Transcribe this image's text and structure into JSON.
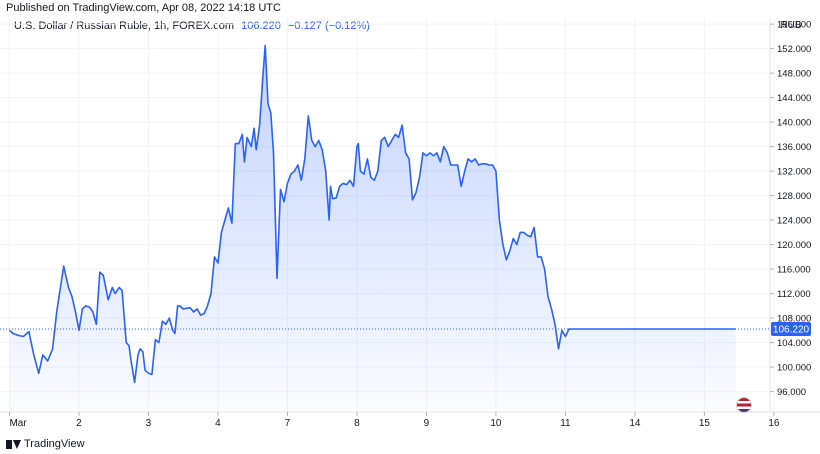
{
  "header": {
    "published": "Published on TradingView.com, Apr 08, 2022 14:18 UTC"
  },
  "legend": {
    "symbol": "U.S. Dollar / Russian Ruble, 1h, FOREX.com",
    "last": "106.220",
    "change": "−0.127 (−0.12%)"
  },
  "footer": {
    "brand": "TradingView"
  },
  "colors": {
    "line": "#2962ff",
    "price_tag": "#2962ff",
    "grid": "#f0f3fa",
    "axis_text": "#131722"
  },
  "chart_data": {
    "type": "area",
    "currency_label": "RUB",
    "price_tag": "106.220",
    "y_ticks": [
      "96.000",
      "100.000",
      "104.000",
      "108.000",
      "112.000",
      "116.000",
      "120.000",
      "124.000",
      "128.000",
      "132.000",
      "136.000",
      "140.000",
      "144.000",
      "148.000",
      "152.000",
      "156.000"
    ],
    "ylim": [
      93,
      157
    ],
    "x_ticks": [
      {
        "label": "Mar",
        "x": 0
      },
      {
        "label": "2",
        "x": 1
      },
      {
        "label": "3",
        "x": 2
      },
      {
        "label": "4",
        "x": 3
      },
      {
        "label": "7",
        "x": 4
      },
      {
        "label": "8",
        "x": 5
      },
      {
        "label": "9",
        "x": 6
      },
      {
        "label": "10",
        "x": 7
      },
      {
        "label": "11",
        "x": 8
      },
      {
        "label": "14",
        "x": 9
      },
      {
        "label": "15",
        "x": 10
      },
      {
        "label": "16",
        "x": 11
      }
    ],
    "xlim": [
      -0.05,
      10.8
    ],
    "series": [
      {
        "x": [
          0,
          0.05,
          0.12,
          0.2,
          0.28,
          0.35,
          0.42,
          0.48,
          0.55,
          0.62,
          0.68,
          0.72,
          0.78,
          0.85,
          0.9,
          0.95,
          1.0,
          1.05,
          1.1,
          1.15,
          1.2,
          1.25,
          1.3,
          1.35,
          1.42,
          1.48,
          1.52,
          1.58,
          1.62,
          1.68,
          1.72,
          1.75,
          1.8,
          1.85,
          1.88,
          1.92,
          1.95,
          2.0,
          2.05,
          2.1,
          2.15,
          2.2,
          2.25,
          2.3,
          2.35,
          2.38,
          2.42,
          2.45,
          2.5,
          2.55,
          2.6,
          2.65,
          2.7,
          2.75,
          2.8,
          2.85,
          2.9,
          2.95,
          3.0,
          3.05,
          3.1,
          3.15,
          3.2,
          3.25,
          3.3,
          3.35,
          3.38,
          3.42,
          3.48,
          3.52,
          3.55,
          3.6,
          3.65,
          3.68,
          3.72,
          3.76,
          3.8,
          3.85,
          3.9,
          3.95,
          4.0,
          4.05,
          4.1,
          4.15,
          4.2,
          4.25,
          4.3,
          4.35,
          4.4,
          4.45,
          4.5,
          4.55,
          4.6,
          4.62,
          4.65,
          4.7,
          4.75,
          4.8,
          4.85,
          4.9,
          4.95,
          5.0,
          5.02,
          5.05,
          5.1,
          5.15,
          5.2,
          5.25,
          5.3,
          5.35,
          5.4,
          5.45,
          5.5,
          5.55,
          5.6,
          5.65,
          5.7,
          5.75,
          5.8,
          5.85,
          5.9,
          5.95,
          6.0,
          6.05,
          6.1,
          6.15,
          6.2,
          6.25,
          6.3,
          6.35,
          6.4,
          6.45,
          6.5,
          6.55,
          6.6,
          6.65,
          6.7,
          6.75,
          6.8,
          6.85,
          6.9,
          6.95,
          7.0,
          7.05,
          7.1,
          7.15,
          7.2,
          7.25,
          7.3,
          7.35,
          7.4,
          7.45,
          7.5,
          7.55,
          7.6,
          7.65,
          7.7,
          7.75,
          7.8,
          7.85,
          7.9,
          7.95,
          8.0,
          8.05,
          8.1,
          8.15,
          8.2,
          8.25,
          8.3,
          8.35,
          8.4,
          8.45,
          8.5,
          8.55,
          8.6,
          8.65,
          8.7,
          8.75,
          8.8,
          8.85,
          8.9,
          8.95,
          9.0,
          9.05,
          9.1,
          9.15,
          9.2,
          9.25,
          9.3,
          9.35,
          9.4,
          9.45,
          9.5,
          9.55,
          9.6,
          9.65,
          9.7,
          9.75,
          9.8,
          9.85,
          9.9,
          9.95,
          10.0,
          10.05,
          10.1,
          10.15,
          10.2,
          10.25,
          10.3,
          10.35,
          10.4,
          10.45
        ],
        "y": [
          106,
          105.5,
          105.2,
          105,
          105.8,
          102,
          99,
          102,
          101,
          103,
          109,
          112,
          116.5,
          113,
          111.5,
          109,
          106,
          109.5,
          110,
          109.8,
          109,
          107,
          115.5,
          115,
          111,
          113,
          112,
          113,
          112.5,
          104,
          103.5,
          101,
          97.5,
          102,
          103,
          102.5,
          99.5,
          99,
          98.8,
          104.5,
          104,
          107.5,
          107,
          108,
          106,
          105.5,
          110,
          110,
          109.5,
          109.6,
          109.7,
          109,
          109.5,
          108.5,
          108.7,
          110,
          112,
          118,
          117,
          122,
          124,
          126,
          123.5,
          136.5,
          136.5,
          138,
          133.5,
          137.5,
          136,
          139,
          135.5,
          139.5,
          148,
          152.5,
          143,
          141.5,
          135,
          114.5,
          129,
          127,
          130,
          131.5,
          132,
          133,
          130.5,
          134,
          141,
          137,
          136,
          137,
          135.5,
          132,
          124,
          129.5,
          127.5,
          127.6,
          129.5,
          130,
          129.8,
          130.5,
          129.5,
          136,
          136.5,
          132,
          131.5,
          134,
          131,
          130.5,
          132,
          137,
          137.5,
          136,
          137,
          138,
          137.5,
          139.5,
          135,
          134,
          127.3,
          128.5,
          131,
          135,
          134.5,
          135,
          134.5,
          135,
          133.5,
          136,
          135,
          133,
          133,
          133,
          129.5,
          132,
          134,
          133.5,
          134,
          133,
          133.2,
          133.2,
          133,
          133,
          132,
          124,
          120,
          117.5,
          119,
          121,
          120,
          122,
          122,
          121.5,
          121.3,
          122.8,
          118,
          118,
          116,
          111.5,
          109.5,
          107,
          103,
          106,
          105,
          106.2,
          106.22,
          106.22,
          106.22,
          106.22,
          106.22,
          106.22,
          106.22,
          106.22,
          106.22,
          106.22,
          106.22,
          106.22,
          106.22,
          106.22,
          106.22,
          106.22,
          106.22,
          106.22,
          106.22,
          106.22,
          106.22,
          106.22,
          106.22,
          106.22,
          106.22,
          106.22,
          106.22,
          106.22,
          106.22,
          106.22,
          106.22,
          106.22,
          106.22,
          106.22,
          106.22,
          106.22,
          106.22,
          106.22,
          106.22,
          106.22,
          106.22,
          106.22,
          106.22,
          106.22,
          106.22,
          106.22,
          106.22,
          106.22
        ]
      }
    ]
  }
}
